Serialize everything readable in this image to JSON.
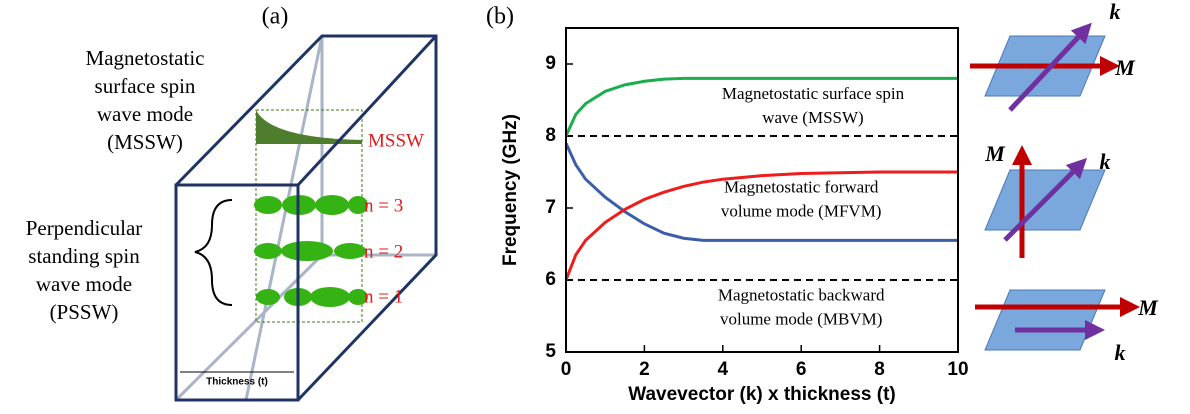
{
  "panel_a": {
    "label": "(a)",
    "mssw_text": [
      "Magnetostatic",
      "surface spin",
      "wave mode",
      "(MSSW)"
    ],
    "pssw_text": [
      "Perpendicular",
      "standing spin",
      "wave mode",
      "(PSSW)"
    ],
    "mssw_tag": "MSSW",
    "modes": [
      "n = 3",
      "n = 2",
      "n = 1"
    ],
    "thickness": "Thickness (t)"
  },
  "chart_data": {
    "type": "line",
    "panel_label": "(b)",
    "x_label": "Wavevector (k) x thickness (t)",
    "y_label": "Frequency (GHz)",
    "x": [
      0,
      0.25,
      0.5,
      1,
      1.5,
      2,
      2.5,
      3,
      3.5,
      4,
      5,
      6,
      8,
      10
    ],
    "series": [
      {
        "color": "#1aad4b",
        "values": [
          8.0,
          8.3,
          8.45,
          8.62,
          8.71,
          8.76,
          8.79,
          8.8,
          8.8,
          8.8,
          8.8,
          8.8,
          8.8,
          8.8
        ]
      },
      {
        "color": "#3a5ea8",
        "values": [
          7.9,
          7.6,
          7.4,
          7.15,
          6.95,
          6.78,
          6.65,
          6.58,
          6.55,
          6.55,
          6.55,
          6.55,
          6.55,
          6.55
        ]
      },
      {
        "color": "#ee1c1c",
        "values": [
          6.0,
          6.35,
          6.55,
          6.8,
          6.98,
          7.12,
          7.22,
          7.3,
          7.36,
          7.4,
          7.45,
          7.48,
          7.5,
          7.5
        ]
      }
    ],
    "reference_lines": [
      8,
      6
    ],
    "annotations": [
      {
        "lines": [
          "Magnetostatic surface spin",
          "wave (MSSW)"
        ],
        "x": 6.3,
        "y": 8.4
      },
      {
        "lines": [
          "Magnetostatic forward",
          "volume mode (MFVM)"
        ],
        "x": 6,
        "y": 7.1
      },
      {
        "lines": [
          "Magnetostatic backward",
          "volume mode (MBVM)"
        ],
        "x": 6,
        "y": 5.6
      }
    ],
    "xlim": [
      0,
      10
    ],
    "ylim": [
      5,
      9.5
    ],
    "xticks": [
      0,
      2,
      4,
      6,
      8,
      10
    ],
    "yticks": [
      5,
      6,
      7,
      8,
      9
    ]
  },
  "panel_c": {
    "diagrams": [
      {
        "k": "k",
        "M": "M"
      },
      {
        "k": "k",
        "M": "M"
      },
      {
        "k": "k",
        "M": "M"
      }
    ]
  }
}
